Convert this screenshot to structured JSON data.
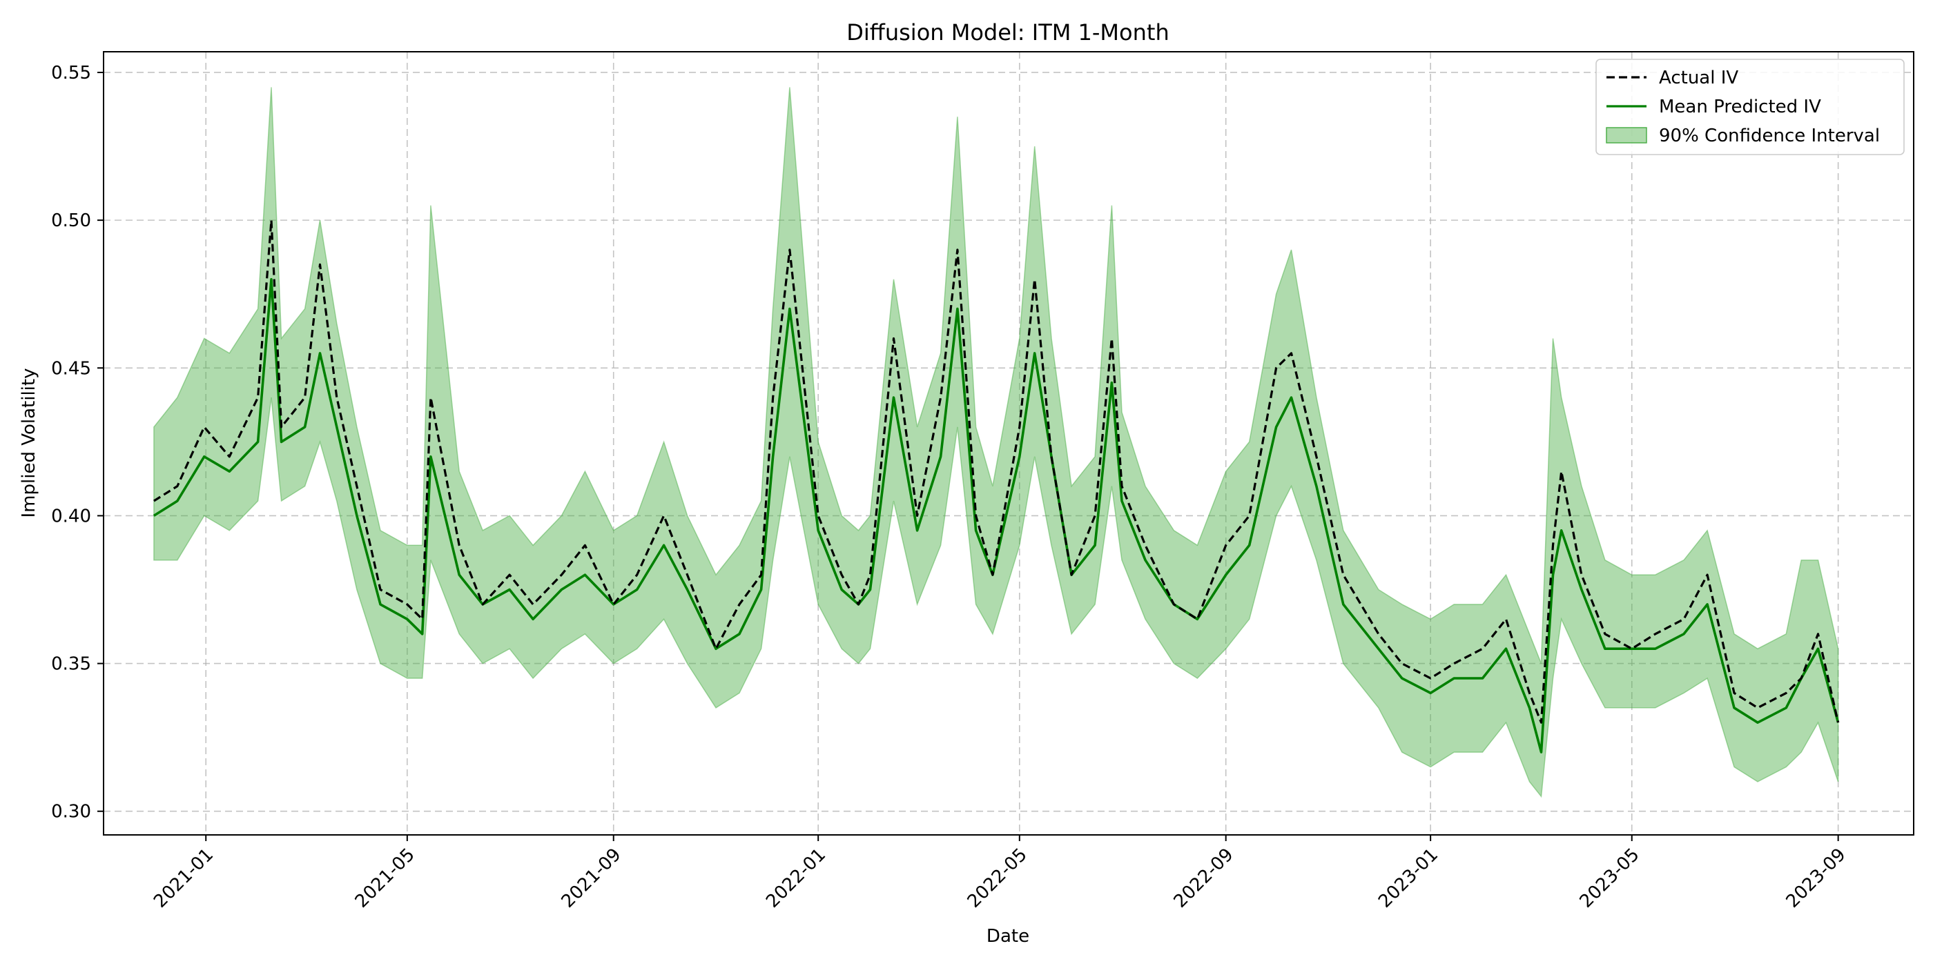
{
  "chart_data": {
    "type": "line",
    "title": "Diffusion Model: ITM 1-Month",
    "xlabel": "Date",
    "ylabel": "Implied Volatility",
    "xlim": [
      "2020-11-01",
      "2023-10-16"
    ],
    "ylim": [
      0.292,
      0.557
    ],
    "x_ticks": [
      "2021-01",
      "2021-05",
      "2021-09",
      "2022-01",
      "2022-05",
      "2022-09",
      "2023-01",
      "2023-05",
      "2023-09"
    ],
    "y_ticks": [
      "0.30",
      "0.35",
      "0.40",
      "0.45",
      "0.50",
      "0.55"
    ],
    "grid": true,
    "legend_position": "top-right",
    "legend": [
      "Actual IV",
      "Mean Predicted IV",
      "90% Confidence Interval"
    ],
    "x": [
      "2020-12-01",
      "2020-12-15",
      "2020-12-31",
      "2021-01-15",
      "2021-02-01",
      "2021-02-09",
      "2021-02-15",
      "2021-03-01",
      "2021-03-10",
      "2021-03-20",
      "2021-04-01",
      "2021-04-15",
      "2021-05-01",
      "2021-05-10",
      "2021-05-15",
      "2021-06-01",
      "2021-06-15",
      "2021-07-01",
      "2021-07-15",
      "2021-08-01",
      "2021-08-15",
      "2021-09-01",
      "2021-09-15",
      "2021-10-01",
      "2021-10-15",
      "2021-11-01",
      "2021-11-15",
      "2021-11-28",
      "2021-12-05",
      "2021-12-15",
      "2022-01-01",
      "2022-01-15",
      "2022-01-25",
      "2022-02-01",
      "2022-02-15",
      "2022-03-01",
      "2022-03-15",
      "2022-03-25",
      "2022-04-05",
      "2022-04-15",
      "2022-05-01",
      "2022-05-10",
      "2022-05-20",
      "2022-06-01",
      "2022-06-15",
      "2022-06-25",
      "2022-07-01",
      "2022-07-15",
      "2022-08-01",
      "2022-08-15",
      "2022-09-01",
      "2022-09-15",
      "2022-10-01",
      "2022-10-10",
      "2022-10-25",
      "2022-11-10",
      "2022-12-01",
      "2022-12-15",
      "2023-01-01",
      "2023-01-15",
      "2023-02-01",
      "2023-02-15",
      "2023-03-01",
      "2023-03-08",
      "2023-03-15",
      "2023-03-20",
      "2023-04-01",
      "2023-04-15",
      "2023-05-01",
      "2023-05-15",
      "2023-06-01",
      "2023-06-15",
      "2023-07-01",
      "2023-07-15",
      "2023-08-01",
      "2023-08-10",
      "2023-08-20",
      "2023-09-01"
    ],
    "series": [
      {
        "name": "Actual IV",
        "color": "#000000",
        "values": [
          0.405,
          0.41,
          0.43,
          0.42,
          0.44,
          0.5,
          0.43,
          0.44,
          0.485,
          0.44,
          0.41,
          0.375,
          0.37,
          0.365,
          0.44,
          0.39,
          0.37,
          0.38,
          0.37,
          0.38,
          0.39,
          0.37,
          0.38,
          0.4,
          0.38,
          0.355,
          0.37,
          0.38,
          0.44,
          0.49,
          0.4,
          0.38,
          0.37,
          0.38,
          0.46,
          0.4,
          0.44,
          0.49,
          0.4,
          0.38,
          0.43,
          0.48,
          0.42,
          0.38,
          0.4,
          0.46,
          0.41,
          0.39,
          0.37,
          0.365,
          0.39,
          0.4,
          0.45,
          0.455,
          0.42,
          0.38,
          0.36,
          0.35,
          0.345,
          0.35,
          0.355,
          0.365,
          0.34,
          0.33,
          0.39,
          0.415,
          0.38,
          0.36,
          0.355,
          0.36,
          0.365,
          0.38,
          0.34,
          0.335,
          0.34,
          0.345,
          0.36,
          0.33
        ]
      },
      {
        "name": "Mean Predicted IV",
        "color": "#008000",
        "values": [
          0.4,
          0.405,
          0.42,
          0.415,
          0.425,
          0.48,
          0.425,
          0.43,
          0.455,
          0.43,
          0.4,
          0.37,
          0.365,
          0.36,
          0.42,
          0.38,
          0.37,
          0.375,
          0.365,
          0.375,
          0.38,
          0.37,
          0.375,
          0.39,
          0.375,
          0.355,
          0.36,
          0.375,
          0.42,
          0.47,
          0.395,
          0.375,
          0.37,
          0.375,
          0.44,
          0.395,
          0.42,
          0.47,
          0.395,
          0.38,
          0.42,
          0.455,
          0.42,
          0.38,
          0.39,
          0.445,
          0.405,
          0.385,
          0.37,
          0.365,
          0.38,
          0.39,
          0.43,
          0.44,
          0.41,
          0.37,
          0.355,
          0.345,
          0.34,
          0.345,
          0.345,
          0.355,
          0.335,
          0.32,
          0.38,
          0.395,
          0.375,
          0.355,
          0.355,
          0.355,
          0.36,
          0.37,
          0.335,
          0.33,
          0.335,
          0.345,
          0.355,
          0.33
        ]
      }
    ],
    "band": {
      "name": "90% Confidence Interval",
      "color": "#4daf4a",
      "lower": [
        0.385,
        0.385,
        0.4,
        0.395,
        0.405,
        0.44,
        0.405,
        0.41,
        0.425,
        0.405,
        0.375,
        0.35,
        0.345,
        0.345,
        0.385,
        0.36,
        0.35,
        0.355,
        0.345,
        0.355,
        0.36,
        0.35,
        0.355,
        0.365,
        0.35,
        0.335,
        0.34,
        0.355,
        0.385,
        0.42,
        0.37,
        0.355,
        0.35,
        0.355,
        0.405,
        0.37,
        0.39,
        0.43,
        0.37,
        0.36,
        0.39,
        0.42,
        0.39,
        0.36,
        0.37,
        0.41,
        0.385,
        0.365,
        0.35,
        0.345,
        0.355,
        0.365,
        0.4,
        0.41,
        0.385,
        0.35,
        0.335,
        0.32,
        0.315,
        0.32,
        0.32,
        0.33,
        0.31,
        0.305,
        0.345,
        0.365,
        0.35,
        0.335,
        0.335,
        0.335,
        0.34,
        0.345,
        0.315,
        0.31,
        0.315,
        0.32,
        0.33,
        0.31
      ],
      "upper": [
        0.43,
        0.44,
        0.46,
        0.455,
        0.47,
        0.545,
        0.46,
        0.47,
        0.5,
        0.465,
        0.43,
        0.395,
        0.39,
        0.39,
        0.505,
        0.415,
        0.395,
        0.4,
        0.39,
        0.4,
        0.415,
        0.395,
        0.4,
        0.425,
        0.4,
        0.38,
        0.39,
        0.405,
        0.47,
        0.545,
        0.425,
        0.4,
        0.395,
        0.4,
        0.48,
        0.43,
        0.455,
        0.535,
        0.43,
        0.41,
        0.46,
        0.525,
        0.46,
        0.41,
        0.42,
        0.505,
        0.435,
        0.41,
        0.395,
        0.39,
        0.415,
        0.425,
        0.475,
        0.49,
        0.44,
        0.395,
        0.375,
        0.37,
        0.365,
        0.37,
        0.37,
        0.38,
        0.36,
        0.35,
        0.46,
        0.44,
        0.41,
        0.385,
        0.38,
        0.38,
        0.385,
        0.395,
        0.36,
        0.355,
        0.36,
        0.385,
        0.385,
        0.355
      ]
    }
  }
}
